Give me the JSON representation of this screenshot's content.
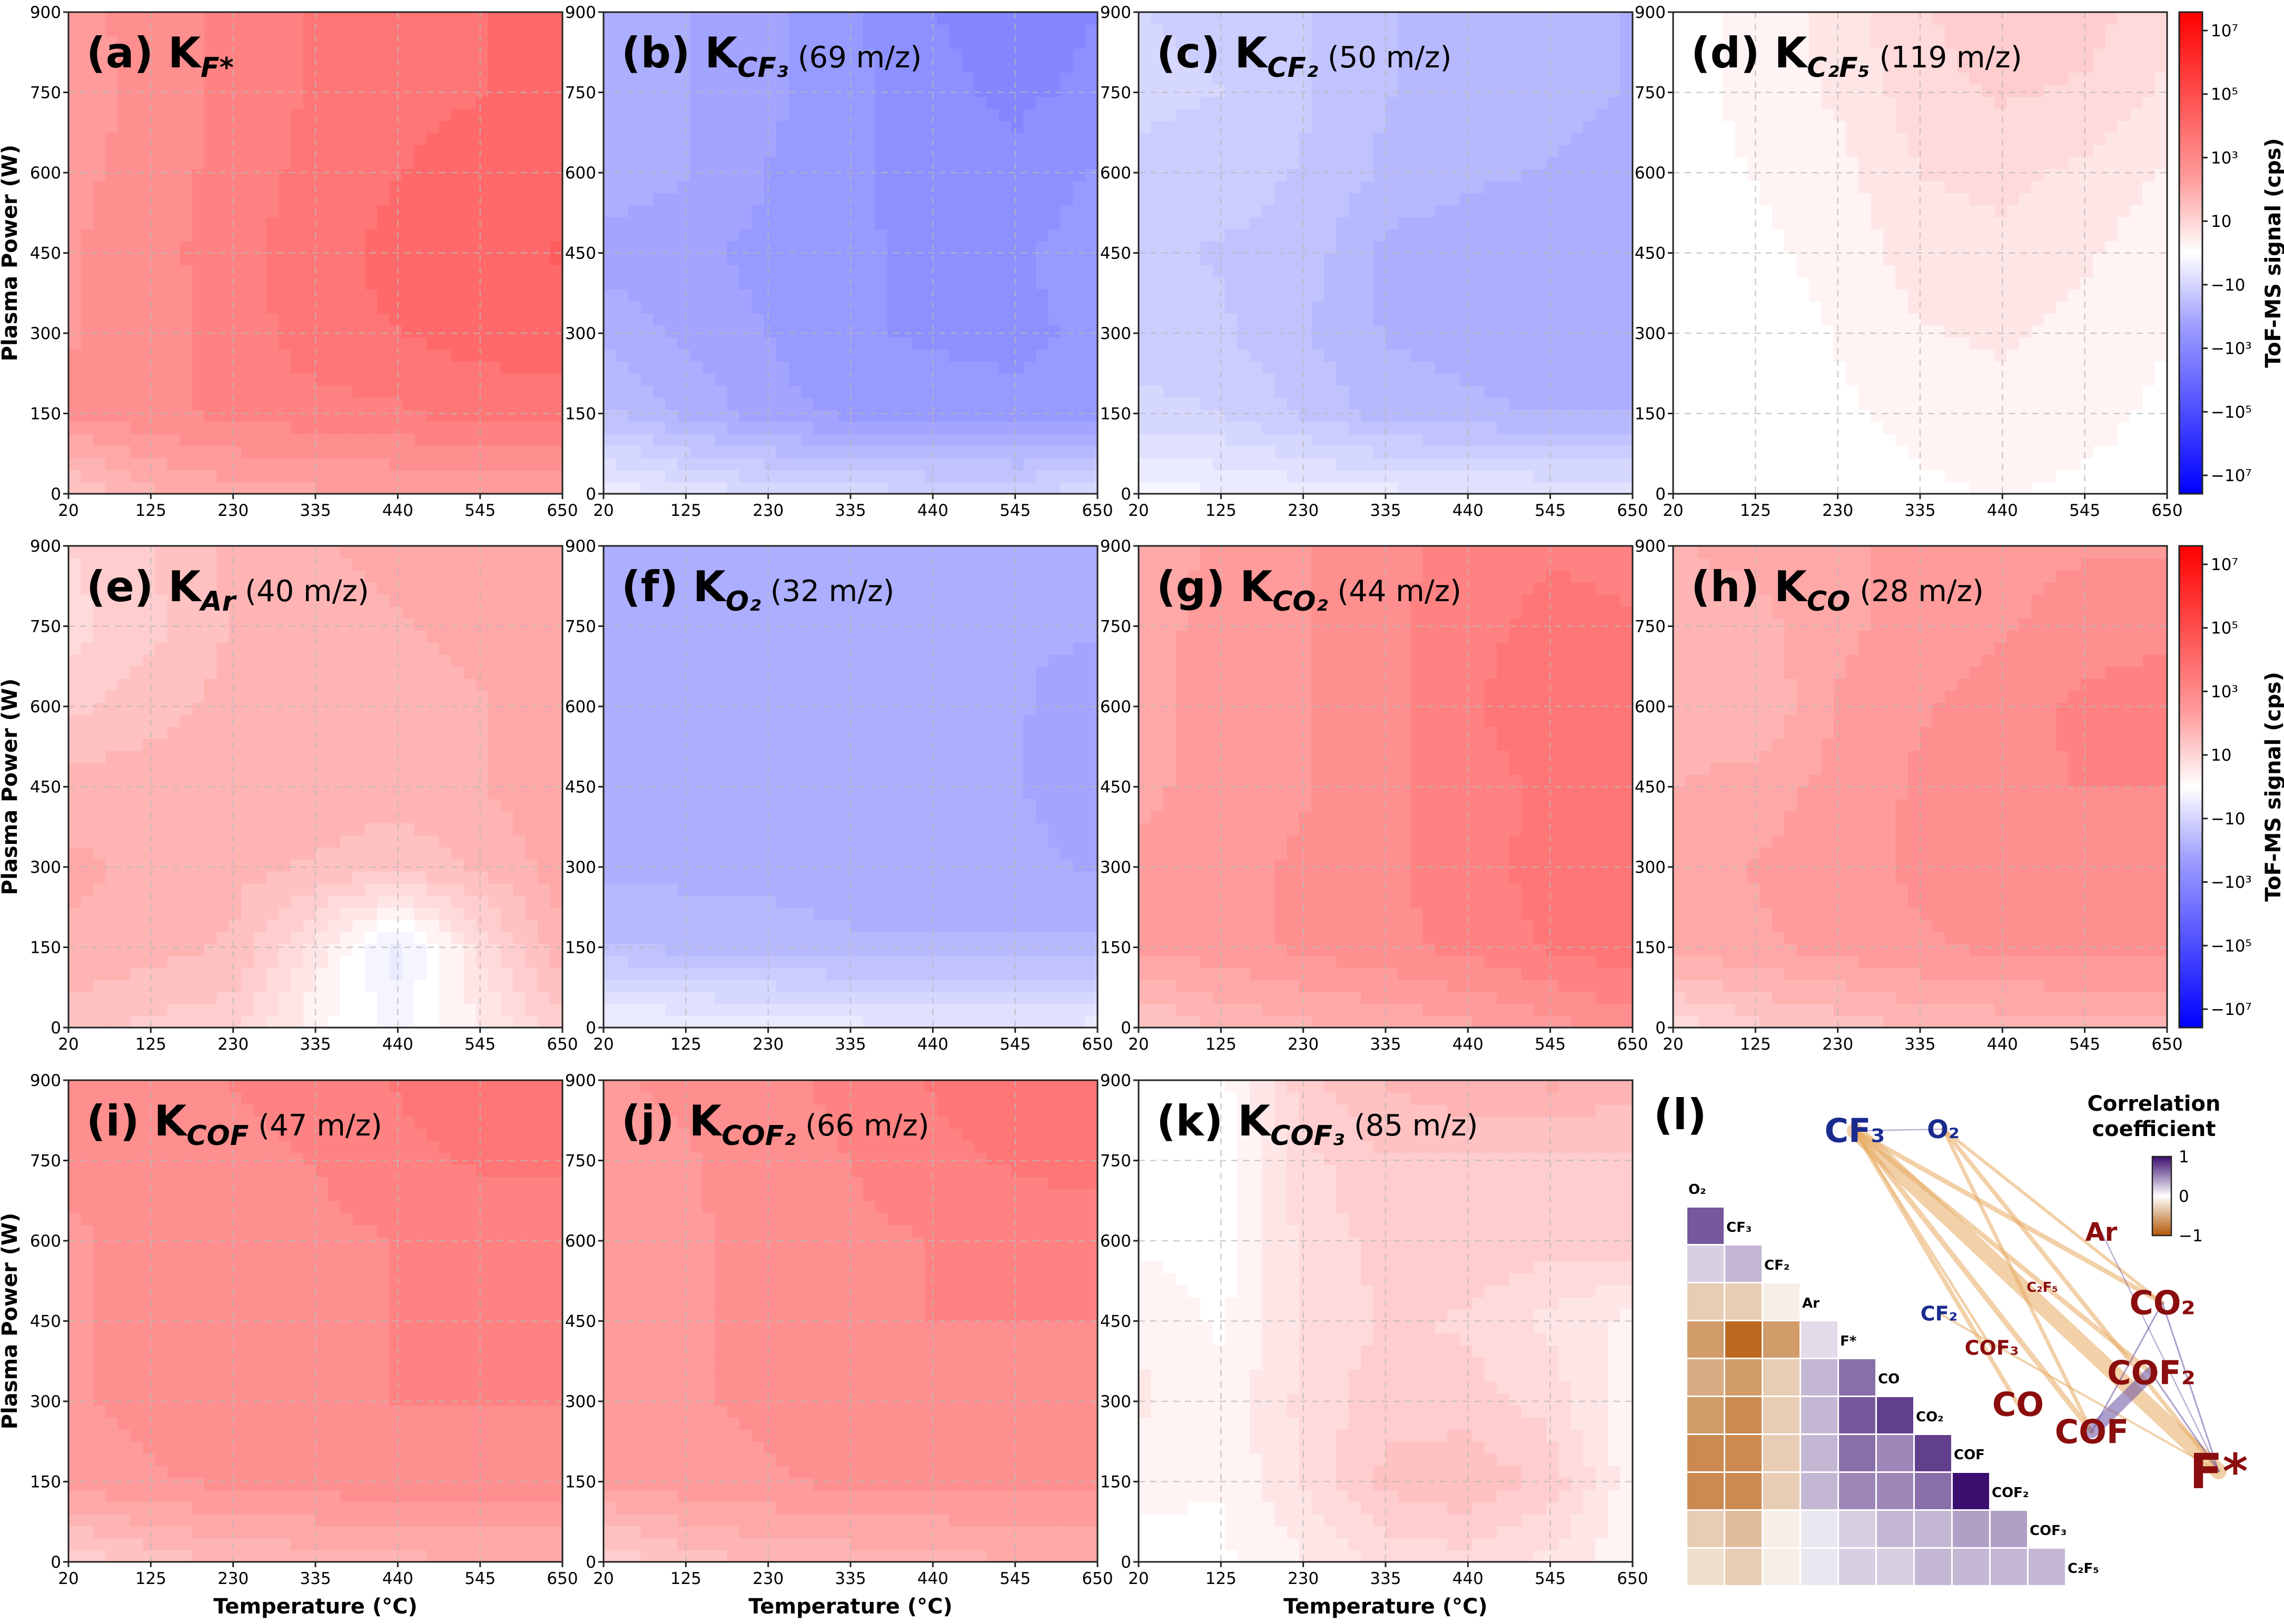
{
  "colors": {
    "pos_mid": "#ff8e8e",
    "pos_strong": "#ff5c5c",
    "neg_mid": "#9fa3ff",
    "neg_strong": "#7d80fb",
    "edge_pos": "#6a51a3",
    "edge_neg": "#e8ab62",
    "net_blue": "#1a2b8f",
    "net_red": "#8b0d0d"
  },
  "chart_data": [
    {
      "id": "a",
      "type": "heatmap",
      "label": "(a) K",
      "sub": "F*",
      "mz": "",
      "xlabel": "",
      "ylabel": "Plasma Power (W)",
      "xticks": [
        "20",
        "125",
        "230",
        "335",
        "440",
        "545",
        "650"
      ],
      "yticks": [
        "0",
        "150",
        "300",
        "450",
        "600",
        "750",
        "900"
      ],
      "xlim": [
        20,
        650
      ],
      "ylim": [
        0,
        900
      ],
      "sign": "positive",
      "log_magnitude": 4.2,
      "z": [
        [
          0.3,
          0.45,
          0.5,
          0.52,
          0.53,
          0.55,
          0.52
        ],
        [
          0.62,
          0.66,
          0.7,
          0.72,
          0.74,
          0.78,
          0.78
        ],
        [
          0.6,
          0.65,
          0.7,
          0.8,
          0.82,
          0.85,
          0.86
        ],
        [
          0.6,
          0.65,
          0.72,
          0.8,
          0.84,
          0.88,
          0.9
        ],
        [
          0.58,
          0.65,
          0.7,
          0.78,
          0.82,
          0.85,
          0.86
        ],
        [
          0.56,
          0.63,
          0.7,
          0.76,
          0.8,
          0.82,
          0.84
        ],
        [
          0.58,
          0.64,
          0.7,
          0.76,
          0.8,
          0.82,
          0.84
        ]
      ]
    },
    {
      "id": "b",
      "type": "heatmap",
      "label": "(b) K",
      "sub": "CF₃",
      "mz": "(69 m/z)",
      "xlabel": "",
      "ylabel": "",
      "xticks": [
        "20",
        "125",
        "230",
        "335",
        "440",
        "545",
        "650"
      ],
      "yticks": [
        "0",
        "150",
        "300",
        "450",
        "600",
        "750",
        "900"
      ],
      "xlim": [
        20,
        650
      ],
      "ylim": [
        0,
        900
      ],
      "sign": "negative",
      "log_magnitude": 4.0,
      "z": [
        [
          0.1,
          0.2,
          0.25,
          0.28,
          0.3,
          0.3,
          0.28
        ],
        [
          0.45,
          0.55,
          0.65,
          0.7,
          0.72,
          0.74,
          0.72
        ],
        [
          0.55,
          0.62,
          0.68,
          0.74,
          0.76,
          0.76,
          0.74
        ],
        [
          0.65,
          0.66,
          0.7,
          0.74,
          0.76,
          0.76,
          0.72
        ],
        [
          0.55,
          0.6,
          0.68,
          0.74,
          0.78,
          0.8,
          0.74
        ],
        [
          0.56,
          0.6,
          0.66,
          0.72,
          0.8,
          0.84,
          0.8
        ],
        [
          0.56,
          0.6,
          0.66,
          0.74,
          0.82,
          0.86,
          0.82
        ]
      ]
    },
    {
      "id": "c",
      "type": "heatmap",
      "label": "(c) K",
      "sub": "CF₂",
      "mz": "(50 m/z)",
      "xlabel": "",
      "ylabel": "",
      "xticks": [
        "20",
        "125",
        "230",
        "335",
        "440",
        "545",
        "650"
      ],
      "yticks": [
        "0",
        "150",
        "300",
        "450",
        "600",
        "750",
        "900"
      ],
      "xlim": [
        20,
        650
      ],
      "ylim": [
        0,
        900
      ],
      "sign": "negative",
      "log_magnitude": 3.0,
      "z": [
        [
          0.05,
          0.1,
          0.12,
          0.15,
          0.16,
          0.17,
          0.17
        ],
        [
          0.3,
          0.32,
          0.4,
          0.5,
          0.52,
          0.54,
          0.54
        ],
        [
          0.36,
          0.38,
          0.46,
          0.54,
          0.56,
          0.58,
          0.58
        ],
        [
          0.38,
          0.4,
          0.42,
          0.56,
          0.58,
          0.6,
          0.6
        ],
        [
          0.34,
          0.36,
          0.4,
          0.48,
          0.52,
          0.54,
          0.56
        ],
        [
          0.3,
          0.32,
          0.38,
          0.46,
          0.5,
          0.52,
          0.54
        ],
        [
          0.32,
          0.34,
          0.38,
          0.46,
          0.5,
          0.52,
          0.54
        ]
      ]
    },
    {
      "id": "d",
      "type": "heatmap",
      "label": "(d) K",
      "sub": "C₂F₅",
      "mz": "(119 m/z)",
      "xlabel": "",
      "ylabel": "",
      "xticks": [
        "20",
        "125",
        "230",
        "335",
        "440",
        "545",
        "650"
      ],
      "yticks": [
        "0",
        "150",
        "300",
        "450",
        "600",
        "750",
        "900"
      ],
      "xlim": [
        20,
        650
      ],
      "ylim": [
        0,
        900
      ],
      "sign": "positive",
      "log_magnitude": 1.5,
      "z": [
        [
          0.0,
          0.0,
          0.0,
          0.02,
          0.04,
          0.02,
          0.0
        ],
        [
          0.0,
          0.0,
          0.02,
          0.06,
          0.08,
          0.06,
          0.02
        ],
        [
          0.0,
          0.0,
          0.04,
          0.1,
          0.12,
          0.08,
          0.04
        ],
        [
          0.0,
          0.02,
          0.06,
          0.14,
          0.16,
          0.12,
          0.06
        ],
        [
          0.0,
          0.04,
          0.08,
          0.18,
          0.2,
          0.16,
          0.1
        ],
        [
          0.0,
          0.06,
          0.12,
          0.22,
          0.26,
          0.24,
          0.16
        ],
        [
          0.0,
          0.06,
          0.14,
          0.24,
          0.3,
          0.28,
          0.2
        ]
      ]
    },
    {
      "id": "e",
      "type": "heatmap",
      "label": "(e) K",
      "sub": "Ar",
      "mz": "(40 m/z)",
      "xlabel": "",
      "ylabel": "Plasma Power (W)",
      "xticks": [
        "20",
        "125",
        "230",
        "335",
        "440",
        "545",
        "650"
      ],
      "yticks": [
        "0",
        "150",
        "300",
        "450",
        "600",
        "750",
        "900"
      ],
      "xlim": [
        20,
        650
      ],
      "ylim": [
        0,
        900
      ],
      "sign": "positive",
      "log_magnitude": 3.0,
      "z": [
        [
          0.35,
          0.3,
          0.28,
          0.05,
          -0.05,
          0.1,
          0.3
        ],
        [
          0.45,
          0.42,
          0.38,
          0.15,
          -0.15,
          0.2,
          0.45
        ],
        [
          0.48,
          0.45,
          0.42,
          0.38,
          0.35,
          0.4,
          0.5
        ],
        [
          0.42,
          0.44,
          0.45,
          0.44,
          0.42,
          0.46,
          0.52
        ],
        [
          0.3,
          0.36,
          0.42,
          0.44,
          0.44,
          0.46,
          0.5
        ],
        [
          0.22,
          0.3,
          0.4,
          0.44,
          0.46,
          0.48,
          0.5
        ],
        [
          0.25,
          0.32,
          0.42,
          0.46,
          0.48,
          0.5,
          0.52
        ]
      ]
    },
    {
      "id": "f",
      "type": "heatmap",
      "label": "(f) K",
      "sub": "O₂",
      "mz": "(32 m/z)",
      "xlabel": "",
      "ylabel": "",
      "xticks": [
        "20",
        "125",
        "230",
        "335",
        "440",
        "545",
        "650"
      ],
      "yticks": [
        "0",
        "150",
        "300",
        "450",
        "600",
        "750",
        "900"
      ],
      "xlim": [
        20,
        650
      ],
      "ylim": [
        0,
        900
      ],
      "sign": "negative",
      "log_magnitude": 3.4,
      "z": [
        [
          0.08,
          0.1,
          0.12,
          0.15,
          0.16,
          0.16,
          0.15
        ],
        [
          0.45,
          0.48,
          0.5,
          0.52,
          0.52,
          0.52,
          0.52
        ],
        [
          0.55,
          0.56,
          0.56,
          0.58,
          0.58,
          0.58,
          0.62
        ],
        [
          0.56,
          0.58,
          0.58,
          0.58,
          0.58,
          0.6,
          0.66
        ],
        [
          0.58,
          0.6,
          0.6,
          0.6,
          0.6,
          0.6,
          0.64
        ],
        [
          0.58,
          0.6,
          0.6,
          0.6,
          0.6,
          0.6,
          0.6
        ],
        [
          0.58,
          0.6,
          0.6,
          0.6,
          0.6,
          0.6,
          0.6
        ]
      ]
    },
    {
      "id": "g",
      "type": "heatmap",
      "label": "(g) K",
      "sub": "CO₂",
      "mz": "(44 m/z)",
      "xlabel": "",
      "ylabel": "",
      "xticks": [
        "20",
        "125",
        "230",
        "335",
        "440",
        "545",
        "650"
      ],
      "yticks": [
        "0",
        "150",
        "300",
        "450",
        "600",
        "750",
        "900"
      ],
      "xlim": [
        20,
        650
      ],
      "ylim": [
        0,
        900
      ],
      "sign": "positive",
      "log_magnitude": 3.6,
      "z": [
        [
          0.3,
          0.4,
          0.45,
          0.48,
          0.52,
          0.58,
          0.64
        ],
        [
          0.55,
          0.58,
          0.62,
          0.66,
          0.7,
          0.76,
          0.8
        ],
        [
          0.55,
          0.58,
          0.62,
          0.66,
          0.72,
          0.78,
          0.82
        ],
        [
          0.52,
          0.56,
          0.6,
          0.66,
          0.72,
          0.76,
          0.8
        ],
        [
          0.52,
          0.55,
          0.6,
          0.66,
          0.74,
          0.8,
          0.8
        ],
        [
          0.52,
          0.55,
          0.6,
          0.66,
          0.72,
          0.78,
          0.76
        ],
        [
          0.5,
          0.55,
          0.6,
          0.66,
          0.7,
          0.74,
          0.72
        ]
      ]
    },
    {
      "id": "h",
      "type": "heatmap",
      "label": "(h) K",
      "sub": "CO",
      "mz": "(28 m/z)",
      "xlabel": "",
      "ylabel": "",
      "xticks": [
        "20",
        "125",
        "230",
        "335",
        "440",
        "545",
        "650"
      ],
      "yticks": [
        "0",
        "150",
        "300",
        "450",
        "600",
        "750",
        "900"
      ],
      "xlim": [
        20,
        650
      ],
      "ylim": [
        0,
        900
      ],
      "sign": "positive",
      "log_magnitude": 3.2,
      "z": [
        [
          0.2,
          0.3,
          0.35,
          0.4,
          0.42,
          0.45,
          0.45
        ],
        [
          0.48,
          0.52,
          0.56,
          0.6,
          0.62,
          0.64,
          0.64
        ],
        [
          0.5,
          0.54,
          0.58,
          0.62,
          0.64,
          0.66,
          0.66
        ],
        [
          0.46,
          0.5,
          0.56,
          0.62,
          0.66,
          0.68,
          0.68
        ],
        [
          0.44,
          0.4,
          0.54,
          0.6,
          0.64,
          0.7,
          0.72
        ],
        [
          0.46,
          0.44,
          0.52,
          0.56,
          0.6,
          0.64,
          0.66
        ],
        [
          0.46,
          0.48,
          0.52,
          0.56,
          0.58,
          0.6,
          0.6
        ]
      ]
    },
    {
      "id": "i",
      "type": "heatmap",
      "label": "(i) K",
      "sub": "COF",
      "mz": "(47 m/z)",
      "xlabel": "Temperature (°C)",
      "ylabel": "Plasma Power (W)",
      "xticks": [
        "20",
        "125",
        "230",
        "335",
        "440",
        "545",
        "650"
      ],
      "yticks": [
        "0",
        "150",
        "300",
        "450",
        "600",
        "750",
        "900"
      ],
      "xlim": [
        20,
        650
      ],
      "ylim": [
        0,
        900
      ],
      "sign": "positive",
      "log_magnitude": 3.8,
      "z": [
        [
          0.25,
          0.35,
          0.4,
          0.42,
          0.44,
          0.46,
          0.46
        ],
        [
          0.58,
          0.6,
          0.62,
          0.64,
          0.66,
          0.66,
          0.66
        ],
        [
          0.6,
          0.62,
          0.64,
          0.66,
          0.68,
          0.68,
          0.68
        ],
        [
          0.6,
          0.62,
          0.64,
          0.66,
          0.68,
          0.7,
          0.7
        ],
        [
          0.6,
          0.62,
          0.64,
          0.66,
          0.68,
          0.7,
          0.72
        ],
        [
          0.62,
          0.64,
          0.66,
          0.68,
          0.72,
          0.76,
          0.76
        ],
        [
          0.64,
          0.66,
          0.68,
          0.7,
          0.76,
          0.8,
          0.8
        ]
      ]
    },
    {
      "id": "j",
      "type": "heatmap",
      "label": "(j) K",
      "sub": "COF₂",
      "mz": "(66 m/z)",
      "xlabel": "Temperature (°C)",
      "ylabel": "",
      "xticks": [
        "20",
        "125",
        "230",
        "335",
        "440",
        "545",
        "650"
      ],
      "yticks": [
        "0",
        "150",
        "300",
        "450",
        "600",
        "750",
        "900"
      ],
      "xlim": [
        20,
        650
      ],
      "ylim": [
        0,
        900
      ],
      "sign": "positive",
      "log_magnitude": 3.6,
      "z": [
        [
          0.25,
          0.35,
          0.4,
          0.42,
          0.44,
          0.46,
          0.46
        ],
        [
          0.55,
          0.58,
          0.6,
          0.62,
          0.62,
          0.62,
          0.62
        ],
        [
          0.58,
          0.6,
          0.62,
          0.64,
          0.66,
          0.66,
          0.66
        ],
        [
          0.58,
          0.6,
          0.62,
          0.66,
          0.68,
          0.68,
          0.68
        ],
        [
          0.58,
          0.6,
          0.62,
          0.66,
          0.68,
          0.7,
          0.7
        ],
        [
          0.58,
          0.6,
          0.64,
          0.68,
          0.72,
          0.76,
          0.78
        ],
        [
          0.6,
          0.62,
          0.66,
          0.7,
          0.76,
          0.8,
          0.82
        ]
      ]
    },
    {
      "id": "k",
      "type": "heatmap",
      "label": "(k) K",
      "sub": "COF₃",
      "mz": "(85 m/z)",
      "xlabel": "Temperature (°C)",
      "ylabel": "",
      "xticks": [
        "20",
        "125",
        "230",
        "335",
        "440",
        "545",
        "650"
      ],
      "yticks": [
        "0",
        "150",
        "300",
        "450",
        "600",
        "750",
        "900"
      ],
      "xlim": [
        20,
        650
      ],
      "ylim": [
        0,
        900
      ],
      "sign": "positive",
      "log_magnitude": 1.8,
      "z": [
        [
          0.02,
          0.02,
          0.1,
          0.2,
          0.22,
          0.15,
          0.05
        ],
        [
          0.05,
          0.04,
          0.18,
          0.34,
          0.38,
          0.3,
          0.06
        ],
        [
          0.12,
          0.06,
          0.2,
          0.3,
          0.28,
          0.22,
          0.04
        ],
        [
          0.1,
          0.02,
          0.18,
          0.26,
          0.24,
          0.16,
          0.08
        ],
        [
          0.02,
          0.0,
          0.2,
          0.28,
          0.3,
          0.28,
          0.3
        ],
        [
          0.0,
          0.0,
          0.22,
          0.32,
          0.3,
          0.3,
          0.3
        ],
        [
          0.0,
          0.0,
          0.3,
          0.4,
          0.46,
          0.48,
          0.42
        ]
      ]
    }
  ],
  "colorbar": {
    "label": "ToF-MS signal (cps)",
    "ticks": [
      "10⁷",
      "10⁵",
      "10³",
      "10",
      "−10",
      "−10³",
      "−10⁵",
      "−10⁷"
    ]
  },
  "correlation": {
    "label": "(l)",
    "colorbar_title_1": "Correlation",
    "colorbar_title_2": "coefficient",
    "colorbar_ticks": [
      "1",
      "0",
      "−1"
    ],
    "species": [
      "O₂",
      "CF₃",
      "CF₂",
      "Ar",
      "F*",
      "CO",
      "CO₂",
      "COF",
      "COF₂",
      "COF₃",
      "C₂F₅"
    ],
    "matrix_lower": [
      [],
      [
        0.7
      ],
      [
        0.2,
        0.3
      ],
      [
        -0.3,
        -0.3,
        -0.1
      ],
      [
        -0.6,
        -0.9,
        -0.6,
        0.15
      ],
      [
        -0.5,
        -0.6,
        -0.3,
        0.3,
        0.6
      ],
      [
        -0.6,
        -0.7,
        -0.3,
        0.3,
        0.7,
        0.8
      ],
      [
        -0.7,
        -0.7,
        -0.3,
        0.3,
        0.6,
        0.5,
        0.8
      ],
      [
        -0.7,
        -0.7,
        -0.3,
        0.3,
        0.5,
        0.5,
        0.6,
        1.0
      ],
      [
        -0.3,
        -0.4,
        -0.1,
        0.1,
        0.2,
        0.3,
        0.3,
        0.4,
        0.4
      ],
      [
        -0.2,
        -0.3,
        -0.1,
        0.1,
        0.2,
        0.2,
        0.3,
        0.3,
        0.3,
        0.3
      ]
    ],
    "network_nodes": [
      {
        "name": "CF₃",
        "group": "negative",
        "size": "large"
      },
      {
        "name": "O₂",
        "group": "negative",
        "size": "medium"
      },
      {
        "name": "Ar",
        "group": "positive",
        "size": "medium"
      },
      {
        "name": "CF₂",
        "group": "negative",
        "size": "small"
      },
      {
        "name": "C₂F₅",
        "group": "positive",
        "size": "tiny"
      },
      {
        "name": "CO₂",
        "group": "positive",
        "size": "large"
      },
      {
        "name": "COF₃",
        "group": "positive",
        "size": "small"
      },
      {
        "name": "COF₂",
        "group": "positive",
        "size": "large"
      },
      {
        "name": "CO",
        "group": "positive",
        "size": "large"
      },
      {
        "name": "COF",
        "group": "positive",
        "size": "large"
      },
      {
        "name": "F*",
        "group": "positive",
        "size": "xlarge"
      }
    ]
  }
}
